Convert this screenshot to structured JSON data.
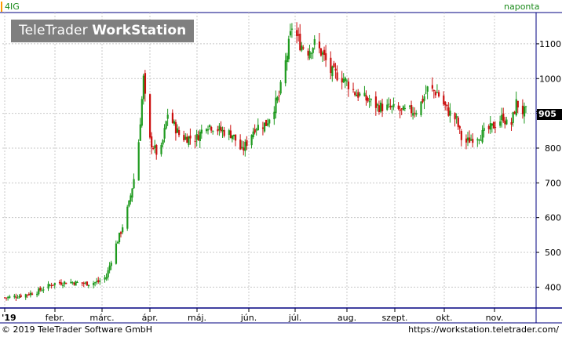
{
  "header": {
    "symbol": "4IG",
    "period": "naponta",
    "watermark_light": "TeleTrader ",
    "watermark_bold": "WorkStation"
  },
  "footer": {
    "copyright": "© 2019 TeleTrader Software GmbH",
    "url": "https://workstation.teletrader.com/"
  },
  "last_price_label": "905",
  "colors": {
    "up": "#1f9a1f",
    "down": "#cc1010",
    "grid": "#c8c8c8",
    "axis_frame": "#000080",
    "symbol_marker": "#ff9900"
  },
  "chart_data": {
    "type": "candlestick",
    "title": "",
    "xlabel": "",
    "ylabel": "",
    "ylim": [
      340,
      1190
    ],
    "y_ticks": [
      400,
      500,
      600,
      700,
      800,
      900,
      1000,
      1100
    ],
    "y_tick_labels": [
      "400",
      "500",
      "600",
      "700",
      "800",
      "900",
      "1000",
      "1100"
    ],
    "x_ticks": [
      "'19",
      "febr.",
      "márc.",
      "ápr.",
      "máj.",
      "jún.",
      "júl.",
      "aug.",
      "szept.",
      "okt.",
      "nov."
    ],
    "grid": true,
    "last_price": 905,
    "series_close_path": [
      [
        "2019-01-02",
        370
      ],
      [
        "2019-01-10",
        375
      ],
      [
        "2019-01-20",
        385
      ],
      [
        "2019-01-31",
        410
      ],
      [
        "2019-02-10",
        415
      ],
      [
        "2019-02-20",
        410
      ],
      [
        "2019-02-28",
        415
      ],
      [
        "2019-03-05",
        430
      ],
      [
        "2019-03-10",
        510
      ],
      [
        "2019-03-14",
        560
      ],
      [
        "2019-03-19",
        640
      ],
      [
        "2019-03-24",
        760
      ],
      [
        "2019-03-26",
        880
      ],
      [
        "2019-03-28",
        1000
      ],
      [
        "2019-03-31",
        830
      ],
      [
        "2019-04-07",
        770
      ],
      [
        "2019-04-12",
        900
      ],
      [
        "2019-04-20",
        830
      ],
      [
        "2019-04-30",
        830
      ],
      [
        "2019-05-06",
        870
      ],
      [
        "2019-05-15",
        850
      ],
      [
        "2019-05-22",
        840
      ],
      [
        "2019-05-28",
        790
      ],
      [
        "2019-06-05",
        860
      ],
      [
        "2019-06-12",
        870
      ],
      [
        "2019-06-20",
        950
      ],
      [
        "2019-06-25",
        1070
      ],
      [
        "2019-06-28",
        1150
      ],
      [
        "2019-07-03",
        1100
      ],
      [
        "2019-07-08",
        1080
      ],
      [
        "2019-07-12",
        1100
      ],
      [
        "2019-07-17",
        1070
      ],
      [
        "2019-07-22",
        1020
      ],
      [
        "2019-07-30",
        1000
      ],
      [
        "2019-08-06",
        960
      ],
      [
        "2019-08-13",
        940
      ],
      [
        "2019-08-20",
        920
      ],
      [
        "2019-08-28",
        915
      ],
      [
        "2019-09-05",
        905
      ],
      [
        "2019-09-14",
        910
      ],
      [
        "2019-09-20",
        970
      ],
      [
        "2019-09-26",
        960
      ],
      [
        "2019-10-02",
        910
      ],
      [
        "2019-10-08",
        880
      ],
      [
        "2019-10-12",
        810
      ],
      [
        "2019-10-18",
        830
      ],
      [
        "2019-10-24",
        840
      ],
      [
        "2019-10-30",
        860
      ],
      [
        "2019-11-06",
        890
      ],
      [
        "2019-11-10",
        850
      ],
      [
        "2019-11-14",
        930
      ],
      [
        "2019-11-18",
        905
      ]
    ],
    "day_range": [
      "2019-01-01",
      "2019-11-20"
    ]
  }
}
